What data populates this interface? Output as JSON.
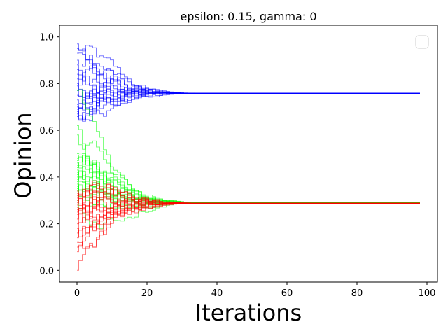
{
  "chart_data": {
    "type": "line",
    "title": "epsilon: 0.15, gamma: 0",
    "xlabel": "Iterations",
    "ylabel": "Opinion",
    "xlim": [
      -5,
      103
    ],
    "ylim": [
      -0.05,
      1.05
    ],
    "x_ticks": [
      "0",
      "20",
      "40",
      "60",
      "80",
      "100"
    ],
    "y_ticks": [
      "0.0",
      "0.2",
      "0.4",
      "0.6",
      "0.8",
      "1.0"
    ],
    "x_tick_values": [
      0,
      20,
      40,
      60,
      80,
      100
    ],
    "y_tick_values": [
      0.0,
      0.2,
      0.4,
      0.6,
      0.8,
      1.0
    ],
    "grid": false,
    "legend": {
      "placement": "upper-right",
      "entries": []
    },
    "iterations": 99,
    "groups": [
      {
        "color": "#0000ff",
        "final_value": 0.758,
        "settle_iteration": 30,
        "initial_values": [
          0.97,
          0.95,
          0.93,
          0.9,
          0.88,
          0.86,
          0.84,
          0.82,
          0.8,
          0.79,
          0.77,
          0.75,
          0.73,
          0.71,
          0.7,
          0.69,
          0.68,
          0.67,
          0.66,
          0.66
        ]
      },
      {
        "color": "#00ff00",
        "final_value": 0.29,
        "settle_iteration": 32,
        "initial_values": [
          0.77,
          0.62,
          0.58,
          0.5,
          0.48,
          0.47,
          0.46,
          0.45,
          0.44,
          0.43,
          0.42,
          0.41,
          0.4,
          0.39,
          0.38,
          0.37,
          0.36,
          0.35,
          0.34,
          0.3
        ]
      },
      {
        "color": "#ff0000",
        "final_value": 0.288,
        "settle_iteration": 30,
        "initial_values": [
          0.0,
          0.08,
          0.1,
          0.12,
          0.14,
          0.16,
          0.18,
          0.2,
          0.22,
          0.24,
          0.25,
          0.26,
          0.27,
          0.28,
          0.29,
          0.3,
          0.31,
          0.32,
          0.33,
          0.34
        ]
      }
    ]
  }
}
